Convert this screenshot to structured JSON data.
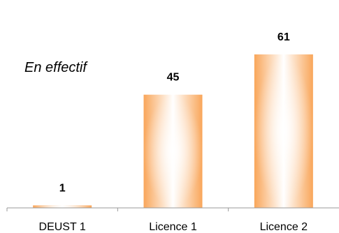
{
  "chart_data": {
    "type": "bar",
    "subtitle": "En effectif",
    "categories": [
      "DEUST 1",
      "Licence 1",
      "Licence 2"
    ],
    "values": [
      1,
      45,
      61
    ],
    "value_labels": [
      "1",
      "45",
      "61"
    ],
    "ylim": [
      0,
      70
    ],
    "grid": false,
    "legend": "none",
    "colors": {
      "bar_edge": "#f9a65a",
      "bar_center": "#ffffff",
      "axis": "#999999"
    }
  }
}
